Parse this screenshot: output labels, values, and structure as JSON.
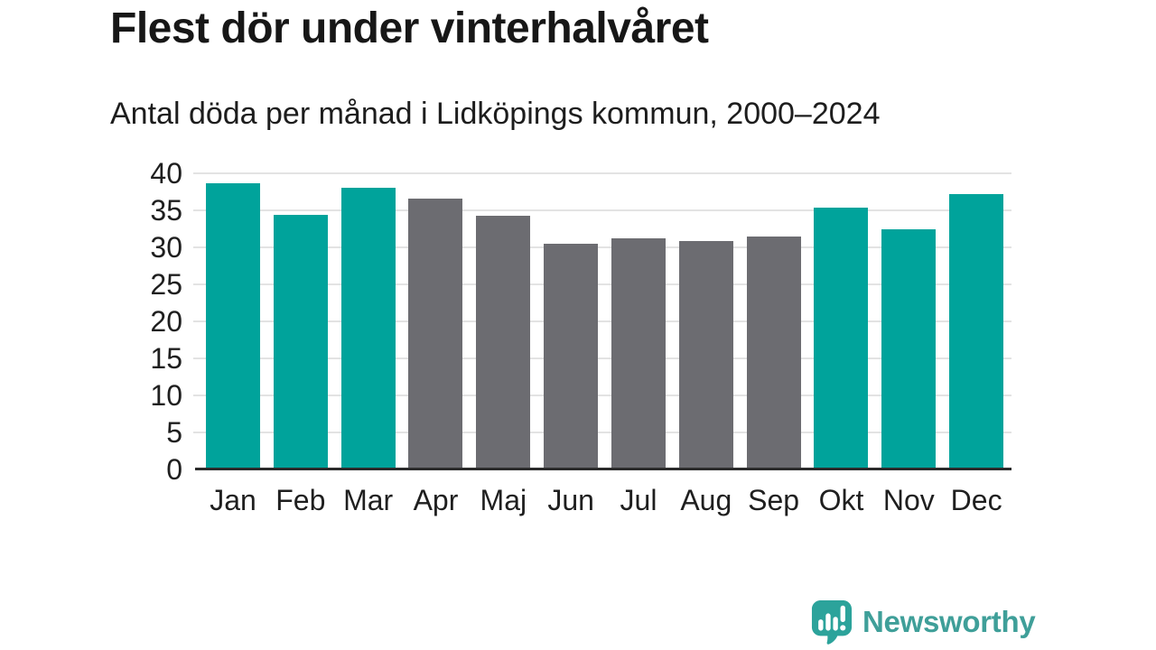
{
  "header": {
    "title": "Flest dör under vinterhalvåret",
    "subtitle": "Antal döda per månad i Lidköpings kommun, 2000–2024"
  },
  "chart_data": {
    "type": "bar",
    "title": "Flest dör under vinterhalvåret",
    "subtitle": "Antal döda per månad i Lidköpings kommun, 2000–2024",
    "categories": [
      "Jan",
      "Feb",
      "Mar",
      "Apr",
      "Maj",
      "Jun",
      "Jul",
      "Aug",
      "Sep",
      "Okt",
      "Nov",
      "Dec"
    ],
    "values": [
      38.7,
      34.4,
      38.1,
      36.6,
      34.3,
      30.5,
      31.2,
      30.9,
      31.5,
      35.4,
      32.5,
      37.2
    ],
    "highlighted_categories": [
      "Jan",
      "Feb",
      "Mar",
      "Okt",
      "Nov",
      "Dec"
    ],
    "xlabel": "",
    "ylabel": "",
    "ylim": [
      0,
      40
    ],
    "yticks": [
      0,
      5,
      10,
      15,
      20,
      25,
      30,
      35,
      40
    ],
    "grid": true,
    "legend": "none",
    "colors": {
      "highlight_bar": "#00a39b",
      "base_bar": "#6c6c71",
      "gridline": "#e3e3e3",
      "axis_line": "#2b2b2b",
      "tick_label": "#1f1f1f"
    }
  },
  "footer": {
    "brand": "Newsworthy",
    "brand_color": "#3f9f99",
    "logo_icon": "bar-chart-speech-bubble-icon",
    "logo_icon_color": "#2ca39b"
  }
}
